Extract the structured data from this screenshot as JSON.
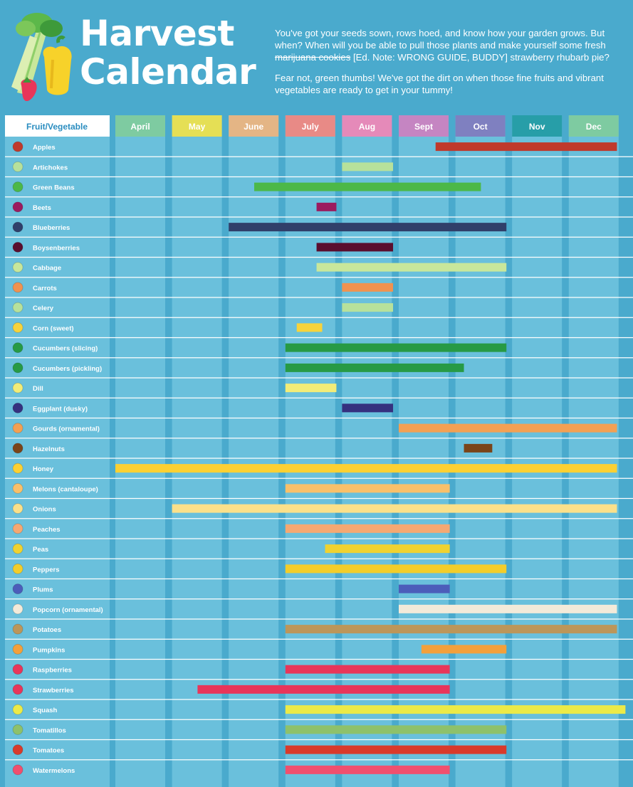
{
  "header": {
    "title_line1": "Harvest",
    "title_line2": "Calendar",
    "intro1_before": "You've got your seeds sown, rows hoed, and know how your garden grows. But when? When will you be able to pull those plants and make yourself some fresh ",
    "intro1_struck": "marijuana cookies",
    "intro1_after": " [Ed. Note: WRONG GUIDE, BUDDY] strawberry rhubarb pie?",
    "intro2": "Fear not, green thumbs! We've got the dirt on when those fine fruits and vibrant vegetables are ready to get in your tummy!"
  },
  "colors": {
    "background": "#4aaacd",
    "column": "#6ac0dc",
    "row_line": "#ffffff",
    "months": [
      "#7ecba1",
      "#e5df55",
      "#e4b585",
      "#e88a86",
      "#e58ab9",
      "#c585c2",
      "#7f80c0",
      "#279ea8",
      "#7ecba1"
    ]
  },
  "chart_data": {
    "type": "table",
    "column_header": "Fruit/Vegetable",
    "months": [
      "April",
      "May",
      "June",
      "July",
      "Aug",
      "Sept",
      "Oct",
      "Nov",
      "Dec"
    ],
    "rows": [
      {
        "name": "Apples",
        "start": 5.65,
        "end": 8.85,
        "color": "#c0392b",
        "icon": "apple-icon"
      },
      {
        "name": "Artichokes",
        "start": 4.0,
        "end": 4.9,
        "color": "#b7e19b",
        "icon": "artichoke-icon"
      },
      {
        "name": "Green Beans",
        "start": 2.45,
        "end": 6.45,
        "color": "#4cb848",
        "icon": "green-bean-icon"
      },
      {
        "name": "Beets",
        "start": 3.55,
        "end": 3.9,
        "color": "#9b1b5f",
        "icon": "beet-icon"
      },
      {
        "name": "Blueberries",
        "start": 2.0,
        "end": 6.9,
        "color": "#303f6a",
        "icon": "blueberry-icon"
      },
      {
        "name": "Boysenberries",
        "start": 3.55,
        "end": 4.9,
        "color": "#5a0e2e",
        "icon": "boysenberry-icon"
      },
      {
        "name": "Cabbage",
        "start": 3.55,
        "end": 6.9,
        "color": "#c8e79b",
        "icon": "cabbage-icon"
      },
      {
        "name": "Carrots",
        "start": 4.0,
        "end": 4.9,
        "color": "#f0924f",
        "icon": "carrot-icon"
      },
      {
        "name": "Celery",
        "start": 4.0,
        "end": 4.9,
        "color": "#b7e19b",
        "icon": "celery-icon"
      },
      {
        "name": "Corn (sweet)",
        "start": 3.2,
        "end": 3.65,
        "color": "#f7d33b",
        "icon": "corn-icon"
      },
      {
        "name": "Cucumbers (slicing)",
        "start": 3.0,
        "end": 6.9,
        "color": "#279a45",
        "icon": "cucumber-slicing-icon"
      },
      {
        "name": "Cucumbers (pickling)",
        "start": 3.0,
        "end": 6.15,
        "color": "#279a45",
        "icon": "cucumber-pickling-icon"
      },
      {
        "name": "Dill",
        "start": 3.0,
        "end": 3.9,
        "color": "#f2ec78",
        "icon": "dill-icon"
      },
      {
        "name": "Eggplant (dusky)",
        "start": 4.0,
        "end": 4.9,
        "color": "#35317f",
        "icon": "eggplant-icon"
      },
      {
        "name": "Gourds (ornamental)",
        "start": 5.0,
        "end": 8.85,
        "color": "#f3a053",
        "icon": "gourd-icon"
      },
      {
        "name": "Hazelnuts",
        "start": 6.15,
        "end": 6.65,
        "color": "#7a4419",
        "icon": "hazelnut-icon"
      },
      {
        "name": "Honey",
        "start": 0.0,
        "end": 8.85,
        "color": "#fcd033",
        "icon": "honey-icon"
      },
      {
        "name": "Melons (cantaloupe)",
        "start": 3.0,
        "end": 5.9,
        "color": "#f9c06a",
        "icon": "cantaloupe-icon"
      },
      {
        "name": "Onions",
        "start": 1.0,
        "end": 8.85,
        "color": "#fbe08a",
        "icon": "onion-icon"
      },
      {
        "name": "Peaches",
        "start": 3.0,
        "end": 5.9,
        "color": "#f5a872",
        "icon": "peach-icon"
      },
      {
        "name": "Peas",
        "start": 3.7,
        "end": 5.9,
        "color": "#f0d230",
        "icon": "pea-icon"
      },
      {
        "name": "Peppers",
        "start": 3.0,
        "end": 6.9,
        "color": "#f3cd2a",
        "icon": "pepper-icon"
      },
      {
        "name": "Plums",
        "start": 5.0,
        "end": 5.9,
        "color": "#4c5dba",
        "icon": "plum-icon"
      },
      {
        "name": "Popcorn (ornamental)",
        "start": 5.0,
        "end": 8.85,
        "color": "#f3ead9",
        "icon": "popcorn-icon"
      },
      {
        "name": "Potatoes",
        "start": 3.0,
        "end": 8.85,
        "color": "#bc965a",
        "icon": "potato-icon"
      },
      {
        "name": "Pumpkins",
        "start": 5.4,
        "end": 6.9,
        "color": "#f3a03b",
        "icon": "pumpkin-icon"
      },
      {
        "name": "Raspberries",
        "start": 3.0,
        "end": 5.9,
        "color": "#e8365a",
        "icon": "raspberry-icon"
      },
      {
        "name": "Strawberries",
        "start": 1.45,
        "end": 5.9,
        "color": "#e8365a",
        "icon": "strawberry-icon"
      },
      {
        "name": "Squash",
        "start": 3.0,
        "end": 9.0,
        "color": "#ecea48",
        "icon": "squash-icon"
      },
      {
        "name": "Tomatillos",
        "start": 3.0,
        "end": 6.9,
        "color": "#8ec16a",
        "icon": "tomatillo-icon"
      },
      {
        "name": "Tomatoes",
        "start": 3.0,
        "end": 6.9,
        "color": "#d93a2b",
        "icon": "tomato-icon"
      },
      {
        "name": "Watermelons",
        "start": 3.0,
        "end": 5.9,
        "color": "#f0506e",
        "icon": "watermelon-icon"
      }
    ]
  }
}
